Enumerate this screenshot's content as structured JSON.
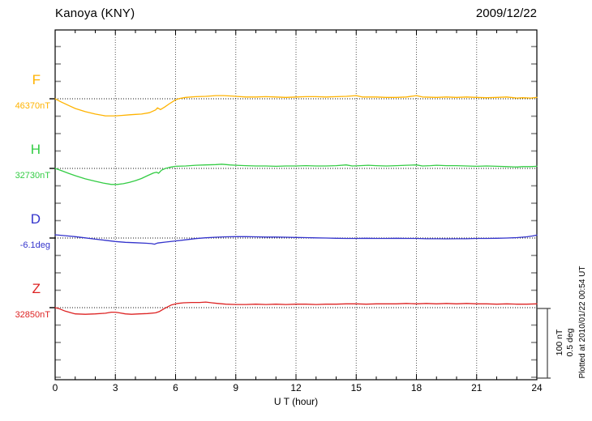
{
  "header": {
    "station": "Kanoya (KNY)",
    "date": "2009/12/22"
  },
  "annotations": {
    "plotted_at": "Plotted at 2010/01/22 00:54 UT"
  },
  "chart_data": {
    "type": "line",
    "title": "Kanoya (KNY)",
    "date": "2009/12/22",
    "xlabel": "U T (hour)",
    "x_range": [
      0,
      24
    ],
    "x_ticks": [
      0,
      3,
      6,
      9,
      12,
      15,
      18,
      21,
      24
    ],
    "grid": "vertical dotted gridlines every 3 hours; dotted horizontal baseline per trace",
    "legend_position": "left of each trace",
    "scale_bar": {
      "lines": [
        "100 nT",
        "0.5 deg"
      ],
      "pixels_per_division": 86
    },
    "series": [
      {
        "key": "F",
        "label": "F",
        "base_label": "46370nT",
        "base_value": 46370,
        "unit": "nT",
        "color": "#FFB300",
        "points": [
          [
            0,
            0
          ],
          [
            0.3,
            -4.5
          ],
          [
            0.7,
            -10
          ],
          [
            1,
            -14
          ],
          [
            1.5,
            -18.5
          ],
          [
            2,
            -22
          ],
          [
            2.5,
            -24.5
          ],
          [
            3,
            -24.5
          ],
          [
            3.3,
            -24
          ],
          [
            3.7,
            -23
          ],
          [
            4,
            -22.5
          ],
          [
            4.3,
            -22
          ],
          [
            4.7,
            -20
          ],
          [
            5,
            -16
          ],
          [
            5.1,
            -13
          ],
          [
            5.25,
            -15.5
          ],
          [
            5.45,
            -12
          ],
          [
            5.7,
            -7
          ],
          [
            6,
            -1.5
          ],
          [
            6.2,
            0.5
          ],
          [
            6.5,
            2
          ],
          [
            7,
            3
          ],
          [
            7.5,
            3.5
          ],
          [
            8,
            4.5
          ],
          [
            8.4,
            4.5
          ],
          [
            8.8,
            4
          ],
          [
            9,
            3.5
          ],
          [
            9.5,
            2.5
          ],
          [
            10,
            2.5
          ],
          [
            10.5,
            3
          ],
          [
            11,
            2.5
          ],
          [
            11.5,
            2
          ],
          [
            12,
            2.5
          ],
          [
            12.5,
            3
          ],
          [
            13,
            3
          ],
          [
            13.5,
            2.5
          ],
          [
            14,
            3
          ],
          [
            14.5,
            3.5
          ],
          [
            15,
            4.5
          ],
          [
            15.3,
            2.5
          ],
          [
            15.7,
            2.5
          ],
          [
            16,
            2.5
          ],
          [
            16.5,
            2
          ],
          [
            17,
            2
          ],
          [
            17.5,
            2.5
          ],
          [
            18,
            4.5
          ],
          [
            18.3,
            2.5
          ],
          [
            19,
            2
          ],
          [
            19.5,
            2.5
          ],
          [
            20,
            2
          ],
          [
            20.5,
            2.5
          ],
          [
            21,
            2
          ],
          [
            21.5,
            1.5
          ],
          [
            22,
            2
          ],
          [
            22.5,
            2.5
          ],
          [
            23,
            1
          ],
          [
            23.3,
            1.5
          ],
          [
            23.7,
            1
          ],
          [
            24,
            2
          ]
        ]
      },
      {
        "key": "H",
        "label": "H",
        "base_label": "32730nT",
        "base_value": 32730,
        "unit": "nT",
        "color": "#33CC44",
        "points": [
          [
            0,
            0
          ],
          [
            0.3,
            -3
          ],
          [
            0.7,
            -7.5
          ],
          [
            1,
            -10.5
          ],
          [
            1.5,
            -15
          ],
          [
            2,
            -18.5
          ],
          [
            2.4,
            -21
          ],
          [
            2.8,
            -23
          ],
          [
            3.1,
            -23
          ],
          [
            3.4,
            -22
          ],
          [
            3.7,
            -20
          ],
          [
            4,
            -17.5
          ],
          [
            4.3,
            -14.5
          ],
          [
            4.6,
            -10.5
          ],
          [
            4.9,
            -6.5
          ],
          [
            5.05,
            -5.5
          ],
          [
            5.15,
            -7
          ],
          [
            5.3,
            -2.5
          ],
          [
            5.5,
            0
          ],
          [
            5.7,
            1.5
          ],
          [
            6,
            3
          ],
          [
            6.5,
            3.5
          ],
          [
            7,
            4.5
          ],
          [
            7.5,
            5
          ],
          [
            8,
            5.5
          ],
          [
            8.3,
            6
          ],
          [
            8.7,
            5
          ],
          [
            9,
            4.5
          ],
          [
            9.5,
            4
          ],
          [
            10,
            3.5
          ],
          [
            10.5,
            3.5
          ],
          [
            11,
            3
          ],
          [
            11.5,
            3.5
          ],
          [
            12,
            3.5
          ],
          [
            12.5,
            4
          ],
          [
            13,
            3.5
          ],
          [
            13.5,
            3.5
          ],
          [
            14,
            4
          ],
          [
            14.5,
            5
          ],
          [
            14.8,
            3.5
          ],
          [
            15.2,
            4
          ],
          [
            15.6,
            4.5
          ],
          [
            16,
            4
          ],
          [
            16.5,
            3.5
          ],
          [
            17,
            4
          ],
          [
            17.5,
            4.5
          ],
          [
            18,
            5
          ],
          [
            18.3,
            3.5
          ],
          [
            18.7,
            4
          ],
          [
            19,
            4.5
          ],
          [
            19.5,
            4
          ],
          [
            20,
            4
          ],
          [
            20.5,
            3.5
          ],
          [
            21,
            3
          ],
          [
            21.5,
            3.5
          ],
          [
            22,
            3
          ],
          [
            22.5,
            2.5
          ],
          [
            23,
            2
          ],
          [
            23.3,
            2.5
          ],
          [
            23.7,
            2.5
          ],
          [
            24,
            3
          ]
        ]
      },
      {
        "key": "D",
        "label": "D",
        "base_label": "-6.1deg",
        "base_value": -6.1,
        "unit": "deg",
        "color": "#3333CC",
        "points": [
          [
            0,
            0.023
          ],
          [
            0.5,
            0.017
          ],
          [
            1,
            0.01
          ],
          [
            1.5,
            0.001
          ],
          [
            2,
            -0.008
          ],
          [
            2.5,
            -0.016
          ],
          [
            3,
            -0.025
          ],
          [
            3.5,
            -0.031
          ],
          [
            4,
            -0.034
          ],
          [
            4.5,
            -0.037
          ],
          [
            4.8,
            -0.04
          ],
          [
            4.95,
            -0.044
          ],
          [
            5.1,
            -0.036
          ],
          [
            5.5,
            -0.029
          ],
          [
            6,
            -0.021
          ],
          [
            6.5,
            -0.013
          ],
          [
            7,
            -0.004
          ],
          [
            7.5,
            0.002
          ],
          [
            8,
            0.006
          ],
          [
            8.5,
            0.009
          ],
          [
            9,
            0.01
          ],
          [
            9.5,
            0.01
          ],
          [
            10,
            0.009
          ],
          [
            10.5,
            0.007
          ],
          [
            11,
            0.007
          ],
          [
            11.5,
            0.006
          ],
          [
            12,
            0.004
          ],
          [
            12.5,
            0.003
          ],
          [
            13,
            0.001
          ],
          [
            13.5,
            0.0
          ],
          [
            14,
            -0.002
          ],
          [
            14.5,
            -0.003
          ],
          [
            15,
            -0.003
          ],
          [
            15.5,
            -0.002
          ],
          [
            16,
            -0.003
          ],
          [
            16.5,
            -0.003
          ],
          [
            17,
            -0.002
          ],
          [
            17.5,
            -0.003
          ],
          [
            18,
            -0.003
          ],
          [
            18.5,
            -0.005
          ],
          [
            19,
            -0.005
          ],
          [
            19.5,
            -0.006
          ],
          [
            20,
            -0.005
          ],
          [
            20.5,
            -0.005
          ],
          [
            21,
            -0.003
          ],
          [
            21.5,
            -0.003
          ],
          [
            22,
            -0.002
          ],
          [
            22.5,
            0.0
          ],
          [
            23,
            0.003
          ],
          [
            23.5,
            0.009
          ],
          [
            23.8,
            0.015
          ],
          [
            24,
            0.021
          ]
        ]
      },
      {
        "key": "Z",
        "label": "Z",
        "base_label": "32850nT",
        "base_value": 32850,
        "unit": "nT",
        "color": "#DD2222",
        "points": [
          [
            0,
            0
          ],
          [
            0.2,
            -1.5
          ],
          [
            0.5,
            -5
          ],
          [
            0.8,
            -7.5
          ],
          [
            1,
            -9
          ],
          [
            1.5,
            -9.5
          ],
          [
            2,
            -9
          ],
          [
            2.5,
            -8
          ],
          [
            2.8,
            -6.5
          ],
          [
            3,
            -6.5
          ],
          [
            3.2,
            -7.5
          ],
          [
            3.5,
            -9
          ],
          [
            3.8,
            -9.5
          ],
          [
            4.2,
            -9
          ],
          [
            4.6,
            -8.5
          ],
          [
            5,
            -7.5
          ],
          [
            5.2,
            -5.5
          ],
          [
            5.4,
            -2
          ],
          [
            5.6,
            1
          ],
          [
            5.8,
            4
          ],
          [
            6.1,
            6
          ],
          [
            6.4,
            7
          ],
          [
            6.8,
            7.5
          ],
          [
            7.2,
            7.5
          ],
          [
            7.5,
            8
          ],
          [
            7.8,
            7
          ],
          [
            8.1,
            6
          ],
          [
            8.5,
            5
          ],
          [
            9,
            4.5
          ],
          [
            9.5,
            4.5
          ],
          [
            10,
            5
          ],
          [
            10.5,
            4.5
          ],
          [
            11,
            5
          ],
          [
            11.5,
            4.5
          ],
          [
            12,
            5
          ],
          [
            12.5,
            5
          ],
          [
            13,
            4.5
          ],
          [
            13.5,
            5
          ],
          [
            14,
            5
          ],
          [
            14.5,
            5.5
          ],
          [
            15,
            5.5
          ],
          [
            15.5,
            5
          ],
          [
            16,
            5.5
          ],
          [
            16.5,
            5.5
          ],
          [
            17,
            5.5
          ],
          [
            17.5,
            6
          ],
          [
            18,
            5.5
          ],
          [
            18.5,
            6
          ],
          [
            19,
            5.5
          ],
          [
            19.5,
            6
          ],
          [
            20,
            5.5
          ],
          [
            20.5,
            6
          ],
          [
            21,
            5.5
          ],
          [
            21.5,
            5.5
          ],
          [
            22,
            5
          ],
          [
            22.5,
            5.5
          ],
          [
            23,
            5
          ],
          [
            23.5,
            5
          ],
          [
            24,
            5.5
          ]
        ]
      }
    ]
  }
}
